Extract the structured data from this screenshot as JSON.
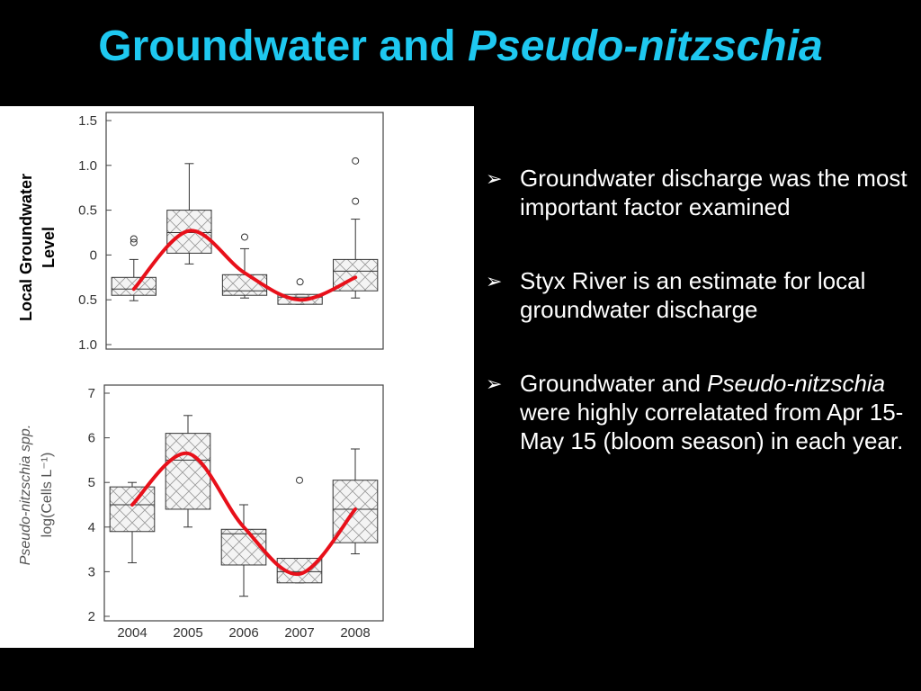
{
  "title": {
    "plain": "Groundwater and ",
    "italic": "Pseudo-nitzschia"
  },
  "bullets": [
    [
      {
        "text": "Groundwater discharge was the most important factor examined"
      }
    ],
    [
      {
        "text": "Styx River is an estimate for local groundwater discharge"
      }
    ],
    [
      {
        "text": "Groundwater and "
      },
      {
        "text": "Pseudo-nitzschia",
        "italic": true
      },
      {
        "text": " were highly correlatated from Apr 15-May 15 (bloom season) in each year."
      }
    ]
  ],
  "chart_data": [
    {
      "type": "box",
      "ylabel": [
        "Local Groundwater",
        "Level"
      ],
      "ylim": [
        -1,
        1.5
      ],
      "yticks": [
        1.5,
        {
          "value": 1,
          "label": "1.0"
        },
        0.5,
        0,
        {
          "value": -0.5,
          "label": "0.5"
        },
        {
          "value": -1,
          "label": "1.0"
        }
      ],
      "boxes": [
        {
          "low": -0.51,
          "q1": -0.45,
          "median": -0.38,
          "q3": -0.25,
          "high": -0.05,
          "outliers": [
            0.14,
            0.18
          ]
        },
        {
          "low": -0.1,
          "q1": 0.02,
          "median": 0.25,
          "q3": 0.5,
          "high": 1.02,
          "outliers": []
        },
        {
          "low": -0.48,
          "q1": -0.45,
          "median": -0.4,
          "q3": -0.22,
          "high": 0.07,
          "outliers": [
            0.2
          ]
        },
        {
          "low": -0.55,
          "q1": -0.55,
          "median": -0.47,
          "q3": -0.44,
          "high": -0.44,
          "outliers": [
            -0.3
          ]
        },
        {
          "low": -0.48,
          "q1": -0.4,
          "median": -0.18,
          "q3": -0.05,
          "high": 0.4,
          "outliers": [
            0.6,
            1.05
          ]
        }
      ],
      "trend": {
        "color": "#e8101a",
        "values": [
          -0.38,
          0.27,
          -0.2,
          -0.5,
          -0.25
        ]
      }
    },
    {
      "type": "box",
      "ylabel": [
        "Pseudo-nitzschia spp.",
        "log(Cells L⁻¹)"
      ],
      "categories": [
        "2004",
        "2005",
        "2006",
        "2007",
        "2008"
      ],
      "ylim": [
        2,
        7
      ],
      "yticks": [
        7,
        6,
        5,
        4,
        3,
        2
      ],
      "boxes": [
        {
          "low": 3.2,
          "q1": 3.9,
          "median": 4.5,
          "q3": 4.9,
          "high": 5.0,
          "outliers": []
        },
        {
          "low": 4.0,
          "q1": 4.4,
          "median": 5.5,
          "q3": 6.1,
          "high": 6.5,
          "outliers": []
        },
        {
          "low": 2.45,
          "q1": 3.15,
          "median": 3.85,
          "q3": 3.95,
          "high": 4.5,
          "outliers": []
        },
        {
          "low": 2.75,
          "q1": 2.75,
          "median": 3.0,
          "q3": 3.3,
          "high": 3.3,
          "outliers": [
            5.05
          ]
        },
        {
          "low": 3.4,
          "q1": 3.65,
          "median": 4.4,
          "q3": 5.05,
          "high": 5.75,
          "outliers": []
        }
      ],
      "trend": {
        "color": "#e8101a",
        "values": [
          4.5,
          5.65,
          4.0,
          2.95,
          4.4
        ]
      }
    }
  ]
}
